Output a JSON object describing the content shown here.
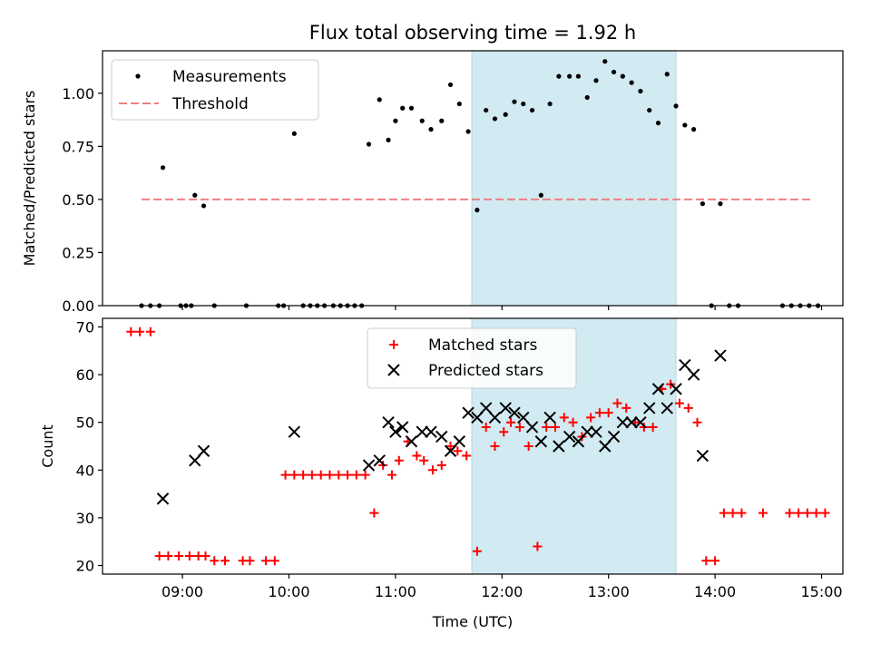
{
  "title": "Flux total observing time = 1.92 h",
  "chart_data": [
    {
      "type": "scatter",
      "panel": "top",
      "xlabel": "",
      "ylabel": "Matched/Predicted stars",
      "xlim": [
        "08:15",
        "15:12"
      ],
      "ylim": [
        0,
        1.2
      ],
      "yticks": [
        0.0,
        0.25,
        0.5,
        0.75,
        1.0
      ],
      "ytick_labels": [
        "0.00",
        "0.25",
        "0.50",
        "0.75",
        "1.00"
      ],
      "grid": false,
      "legend_position": "upper-left",
      "shaded_span": {
        "start": "11:43",
        "end": "13:38",
        "color": "#add8e6"
      },
      "threshold": {
        "name": "Threshold",
        "value": 0.5,
        "x_start": "08:37",
        "x_end": "14:54",
        "color": "#f08080",
        "style": "dashed"
      },
      "series": [
        {
          "name": "Measurements",
          "color": "#000000",
          "marker": "dot",
          "points": [
            [
              "08:37",
              0
            ],
            [
              "08:42",
              0
            ],
            [
              "08:47",
              0
            ],
            [
              "08:49",
              0.65
            ],
            [
              "08:59",
              0
            ],
            [
              "09:02",
              0
            ],
            [
              "09:05",
              0
            ],
            [
              "09:07",
              0.52
            ],
            [
              "09:12",
              0.47
            ],
            [
              "09:18",
              0
            ],
            [
              "09:36",
              0
            ],
            [
              "09:54",
              0
            ],
            [
              "09:57",
              0
            ],
            [
              "10:03",
              0.81
            ],
            [
              "10:08",
              0
            ],
            [
              "10:12",
              0
            ],
            [
              "10:16",
              0
            ],
            [
              "10:20",
              0
            ],
            [
              "10:25",
              0
            ],
            [
              "10:29",
              0
            ],
            [
              "10:33",
              0
            ],
            [
              "10:37",
              0
            ],
            [
              "10:41",
              0
            ],
            [
              "10:45",
              0.76
            ],
            [
              "10:51",
              0.97
            ],
            [
              "10:56",
              0.78
            ],
            [
              "11:00",
              0.87
            ],
            [
              "11:04",
              0.93
            ],
            [
              "11:09",
              0.93
            ],
            [
              "11:15",
              0.87
            ],
            [
              "11:20",
              0.83
            ],
            [
              "11:26",
              0.87
            ],
            [
              "11:31",
              1.04
            ],
            [
              "11:36",
              0.95
            ],
            [
              "11:41",
              0.82
            ],
            [
              "11:46",
              0.45
            ],
            [
              "11:51",
              0.92
            ],
            [
              "11:56",
              0.88
            ],
            [
              "12:02",
              0.9
            ],
            [
              "12:07",
              0.96
            ],
            [
              "12:12",
              0.95
            ],
            [
              "12:17",
              0.92
            ],
            [
              "12:22",
              0.52
            ],
            [
              "12:27",
              0.95
            ],
            [
              "12:32",
              1.08
            ],
            [
              "12:38",
              1.08
            ],
            [
              "12:43",
              1.08
            ],
            [
              "12:48",
              0.98
            ],
            [
              "12:53",
              1.06
            ],
            [
              "12:58",
              1.15
            ],
            [
              "13:03",
              1.1
            ],
            [
              "13:08",
              1.08
            ],
            [
              "13:13",
              1.05
            ],
            [
              "13:18",
              1.01
            ],
            [
              "13:23",
              0.92
            ],
            [
              "13:28",
              0.86
            ],
            [
              "13:33",
              1.09
            ],
            [
              "13:38",
              0.94
            ],
            [
              "13:43",
              0.85
            ],
            [
              "13:48",
              0.83
            ],
            [
              "13:53",
              0.48
            ],
            [
              "13:58",
              0
            ],
            [
              "14:03",
              0.48
            ],
            [
              "14:08",
              0
            ],
            [
              "14:13",
              0
            ],
            [
              "14:38",
              0
            ],
            [
              "14:43",
              0
            ],
            [
              "14:48",
              0
            ],
            [
              "14:53",
              0
            ],
            [
              "14:58",
              0
            ]
          ]
        }
      ]
    },
    {
      "type": "scatter",
      "panel": "bottom",
      "xlabel": "Time (UTC)",
      "ylabel": "Count",
      "xlim": [
        "08:15",
        "15:12"
      ],
      "ylim": [
        18.2,
        71.8
      ],
      "xticks": [
        "09:00",
        "10:00",
        "11:00",
        "12:00",
        "13:00",
        "14:00",
        "15:00"
      ],
      "yticks": [
        20,
        30,
        40,
        50,
        60,
        70
      ],
      "ytick_labels": [
        "20",
        "30",
        "40",
        "50",
        "60",
        "70"
      ],
      "grid": false,
      "legend_position": "upper-center",
      "shaded_span": {
        "start": "11:43",
        "end": "13:38",
        "color": "#add8e6"
      },
      "series": [
        {
          "name": "Matched stars",
          "color": "#ff0000",
          "marker": "plus",
          "points": [
            [
              "08:31",
              69
            ],
            [
              "08:36",
              69
            ],
            [
              "08:42",
              69
            ],
            [
              "08:47",
              22
            ],
            [
              "08:52",
              22
            ],
            [
              "08:58",
              22
            ],
            [
              "09:04",
              22
            ],
            [
              "09:09",
              22
            ],
            [
              "09:13",
              22
            ],
            [
              "09:18",
              21
            ],
            [
              "09:24",
              21
            ],
            [
              "09:34",
              21
            ],
            [
              "09:38",
              21
            ],
            [
              "09:47",
              21
            ],
            [
              "09:52",
              21
            ],
            [
              "09:58",
              39
            ],
            [
              "10:03",
              39
            ],
            [
              "10:08",
              39
            ],
            [
              "10:13",
              39
            ],
            [
              "10:18",
              39
            ],
            [
              "10:23",
              39
            ],
            [
              "10:28",
              39
            ],
            [
              "10:33",
              39
            ],
            [
              "10:38",
              39
            ],
            [
              "10:43",
              39
            ],
            [
              "10:48",
              31
            ],
            [
              "10:53",
              41
            ],
            [
              "10:58",
              39
            ],
            [
              "11:02",
              42
            ],
            [
              "11:07",
              46
            ],
            [
              "11:12",
              43
            ],
            [
              "11:16",
              42
            ],
            [
              "11:21",
              40
            ],
            [
              "11:26",
              41
            ],
            [
              "11:31",
              45
            ],
            [
              "11:35",
              44
            ],
            [
              "11:40",
              43
            ],
            [
              "11:46",
              23
            ],
            [
              "11:51",
              49
            ],
            [
              "11:56",
              45
            ],
            [
              "12:01",
              48
            ],
            [
              "12:05",
              50
            ],
            [
              "12:10",
              49
            ],
            [
              "12:15",
              45
            ],
            [
              "12:20",
              24
            ],
            [
              "12:25",
              49
            ],
            [
              "12:30",
              49
            ],
            [
              "12:35",
              51
            ],
            [
              "12:40",
              50
            ],
            [
              "12:45",
              47
            ],
            [
              "12:50",
              51
            ],
            [
              "12:55",
              52
            ],
            [
              "13:00",
              52
            ],
            [
              "13:05",
              54
            ],
            [
              "13:10",
              53
            ],
            [
              "13:15",
              50
            ],
            [
              "13:20",
              49
            ],
            [
              "13:25",
              49
            ],
            [
              "13:30",
              57
            ],
            [
              "13:35",
              58
            ],
            [
              "13:40",
              54
            ],
            [
              "13:45",
              53
            ],
            [
              "13:50",
              50
            ],
            [
              "13:55",
              21
            ],
            [
              "14:00",
              21
            ],
            [
              "14:05",
              31
            ],
            [
              "14:10",
              31
            ],
            [
              "14:15",
              31
            ],
            [
              "14:27",
              31
            ],
            [
              "14:42",
              31
            ],
            [
              "14:47",
              31
            ],
            [
              "14:52",
              31
            ],
            [
              "14:57",
              31
            ],
            [
              "15:02",
              31
            ]
          ]
        },
        {
          "name": "Predicted stars",
          "color": "#000000",
          "marker": "x",
          "points": [
            [
              "08:49",
              34
            ],
            [
              "09:07",
              42
            ],
            [
              "09:12",
              44
            ],
            [
              "10:03",
              48
            ],
            [
              "10:45",
              41
            ],
            [
              "10:51",
              42
            ],
            [
              "10:56",
              50
            ],
            [
              "11:00",
              48
            ],
            [
              "11:04",
              49
            ],
            [
              "11:09",
              46
            ],
            [
              "11:15",
              48
            ],
            [
              "11:20",
              48
            ],
            [
              "11:26",
              47
            ],
            [
              "11:31",
              44
            ],
            [
              "11:36",
              46
            ],
            [
              "11:41",
              52
            ],
            [
              "11:46",
              51
            ],
            [
              "11:51",
              53
            ],
            [
              "11:56",
              51
            ],
            [
              "12:02",
              53
            ],
            [
              "12:07",
              52
            ],
            [
              "12:12",
              51
            ],
            [
              "12:17",
              49
            ],
            [
              "12:22",
              46
            ],
            [
              "12:27",
              51
            ],
            [
              "12:32",
              45
            ],
            [
              "12:38",
              47
            ],
            [
              "12:43",
              46
            ],
            [
              "12:48",
              48
            ],
            [
              "12:53",
              48
            ],
            [
              "12:58",
              45
            ],
            [
              "13:03",
              47
            ],
            [
              "13:08",
              50
            ],
            [
              "13:13",
              50
            ],
            [
              "13:18",
              50
            ],
            [
              "13:23",
              53
            ],
            [
              "13:28",
              57
            ],
            [
              "13:33",
              53
            ],
            [
              "13:38",
              57
            ],
            [
              "13:43",
              62
            ],
            [
              "13:48",
              60
            ],
            [
              "13:53",
              43
            ],
            [
              "14:03",
              64
            ]
          ]
        }
      ]
    }
  ]
}
